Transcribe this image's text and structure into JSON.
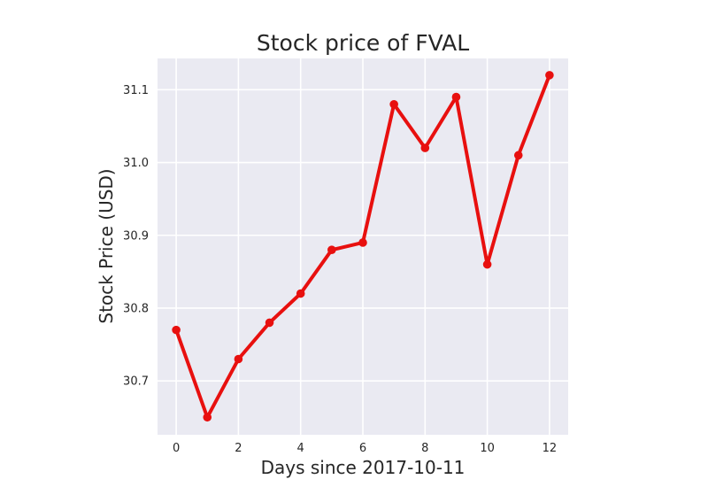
{
  "chart_data": {
    "type": "line",
    "title": "Stock price of FVAL",
    "xlabel": "Days since 2017-10-11",
    "ylabel": "Stock Price (USD)",
    "x": [
      0,
      1,
      2,
      3,
      4,
      5,
      6,
      7,
      8,
      9,
      10,
      11,
      12
    ],
    "series": [
      {
        "values": [
          30.77,
          30.65,
          30.73,
          30.78,
          30.82,
          30.88,
          30.89,
          31.08,
          31.02,
          31.09,
          30.86,
          31.01,
          31.12
        ]
      }
    ],
    "xlim": [
      -0.6,
      12.6
    ],
    "ylim": [
      30.626,
      31.143
    ],
    "xticks": [
      0,
      2,
      4,
      6,
      8,
      10,
      12
    ],
    "yticks": [
      30.7,
      30.8,
      30.9,
      31.0,
      31.1
    ],
    "grid": true,
    "colors": {
      "line": "#e8100f",
      "plot_background": "#eaeaf2",
      "grid": "#ffffff",
      "text": "#262626"
    }
  }
}
